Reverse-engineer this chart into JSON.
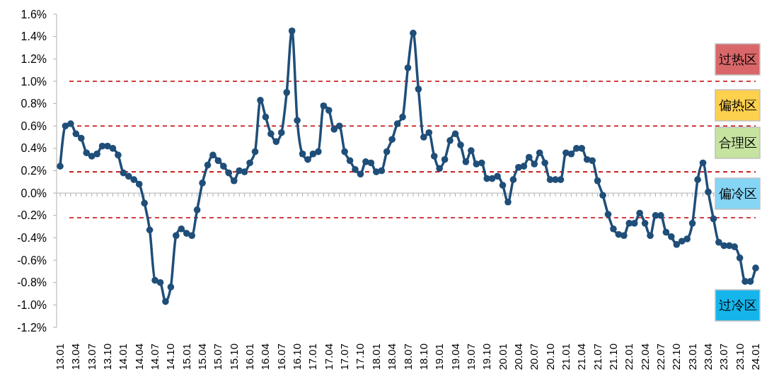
{
  "chart_data": {
    "type": "line",
    "categories": [
      "13.01",
      null,
      null,
      "13.04",
      null,
      null,
      "13.07",
      null,
      null,
      "13.10",
      null,
      null,
      "14.01",
      null,
      null,
      "14.04",
      null,
      null,
      "14.07",
      null,
      null,
      "14.10",
      null,
      null,
      "15.01",
      null,
      null,
      "15.04",
      null,
      null,
      "15.07",
      null,
      null,
      "15.10",
      null,
      null,
      "16.01",
      null,
      null,
      "16.04",
      null,
      null,
      "16.07",
      null,
      null,
      "16.10",
      null,
      null,
      "17.01",
      null,
      null,
      "17.04",
      null,
      null,
      "17.07",
      null,
      null,
      "17.10",
      null,
      null,
      "18.01",
      null,
      null,
      "18.04",
      null,
      null,
      "18.07",
      null,
      null,
      "18.10",
      null,
      null,
      "19.01",
      null,
      null,
      "19.04",
      null,
      null,
      "19.07",
      null,
      null,
      "19.10",
      null,
      null,
      "20.01",
      null,
      null,
      "20.04",
      null,
      null,
      "20.07",
      null,
      null,
      "20.10",
      null,
      null,
      "21.01",
      null,
      null,
      "21.04",
      null,
      null,
      "21.07",
      null,
      null,
      "21.10",
      null,
      null,
      "22.01",
      null,
      null,
      "22.04",
      null,
      null,
      "22.07",
      null,
      null,
      "22.10",
      null,
      null,
      "23.01",
      null,
      null,
      "23.04",
      null,
      null,
      "23.07",
      null,
      null,
      "23.10",
      null,
      null,
      "24.01"
    ],
    "series": [
      {
        "color": "#1f4e79",
        "values": [
          0.24,
          0.6,
          0.62,
          0.53,
          0.49,
          0.36,
          0.33,
          0.35,
          0.42,
          0.42,
          0.4,
          0.34,
          0.18,
          0.15,
          0.12,
          0.08,
          -0.09,
          -0.33,
          -0.78,
          -0.8,
          -0.97,
          -0.84,
          -0.38,
          -0.32,
          -0.36,
          -0.38,
          -0.15,
          0.09,
          0.25,
          0.34,
          0.29,
          0.24,
          0.18,
          0.11,
          0.2,
          0.19,
          0.27,
          0.37,
          0.83,
          0.68,
          0.53,
          0.46,
          0.54,
          0.9,
          1.45,
          0.65,
          0.35,
          0.3,
          0.35,
          0.37,
          0.78,
          0.74,
          0.57,
          0.6,
          0.37,
          0.29,
          0.21,
          0.17,
          0.28,
          0.27,
          0.19,
          0.2,
          0.37,
          0.48,
          0.62,
          0.68,
          1.12,
          1.43,
          0.93,
          0.5,
          0.54,
          0.33,
          0.22,
          0.3,
          0.47,
          0.53,
          0.43,
          0.28,
          0.38,
          0.26,
          0.27,
          0.13,
          0.13,
          0.15,
          0.07,
          -0.08,
          0.12,
          0.23,
          0.24,
          0.32,
          0.26,
          0.36,
          0.27,
          0.12,
          0.12,
          0.12,
          0.36,
          0.35,
          0.4,
          0.4,
          0.3,
          0.29,
          0.11,
          -0.02,
          -0.19,
          -0.32,
          -0.37,
          -0.38,
          -0.27,
          -0.27,
          -0.18,
          -0.27,
          -0.38,
          -0.2,
          -0.2,
          -0.35,
          -0.39,
          -0.46,
          -0.43,
          -0.41,
          -0.27,
          0.12,
          0.27,
          0.01,
          -0.23,
          -0.44,
          -0.47,
          -0.47,
          -0.48,
          -0.58,
          -0.79,
          -0.79,
          -0.67
        ]
      }
    ],
    "ylim": [
      -1.2,
      1.6
    ],
    "yticks": [
      {
        "value": -1.2,
        "label": "-1.2%"
      },
      {
        "value": -1.0,
        "label": "-1.0%"
      },
      {
        "value": -0.8,
        "label": "-0.8%"
      },
      {
        "value": -0.6,
        "label": "-0.6%"
      },
      {
        "value": -0.4,
        "label": "-0.4%"
      },
      {
        "value": -0.2,
        "label": "-0.2%"
      },
      {
        "value": 0,
        "label": "0.0%"
      },
      {
        "value": 0.2,
        "label": "0.2%"
      },
      {
        "value": 0.4,
        "label": "0.4%"
      },
      {
        "value": 0.6,
        "label": "0.6%"
      },
      {
        "value": 0.8,
        "label": "0.8%"
      },
      {
        "value": 1.0,
        "label": "1.0%"
      },
      {
        "value": 1.2,
        "label": "1.2%"
      },
      {
        "value": 1.4,
        "label": "1.4%"
      },
      {
        "value": 1.6,
        "label": "1.6%"
      }
    ],
    "ref_lines": [
      {
        "axis": "y",
        "value": 1.0,
        "color": "#c00000",
        "line_style": "dashed"
      },
      {
        "axis": "y",
        "value": 0.6,
        "color": "#c00000",
        "line_style": "dashed"
      },
      {
        "axis": "y",
        "value": 0.19,
        "color": "#c00000",
        "line_style": "dashed"
      },
      {
        "axis": "y",
        "value": -0.22,
        "color": "#c00000",
        "line_style": "dashed"
      }
    ],
    "annotations": [
      "过热区",
      "偏热区",
      "合理区",
      "偏冷区",
      "过冷区"
    ],
    "marker": "circle",
    "line_style": "solid",
    "grid": false
  }
}
